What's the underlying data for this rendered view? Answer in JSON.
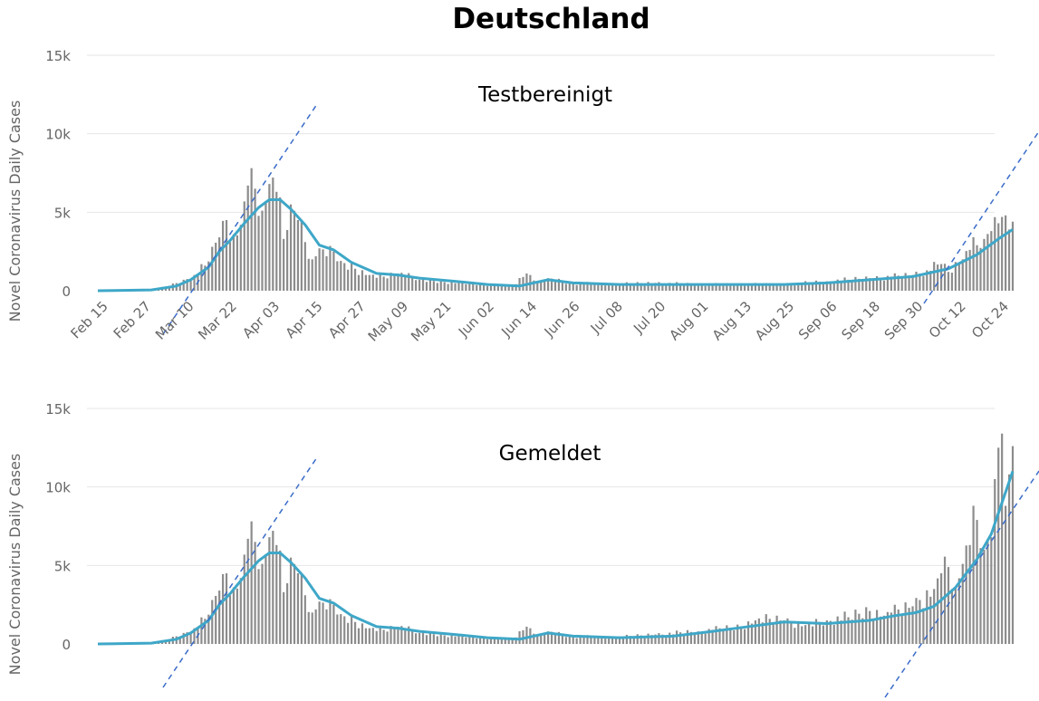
{
  "title": "Deutschland",
  "chart_data": [
    {
      "type": "bar",
      "subtitle": "Testbereinigt",
      "ylabel": "Novel Coronavirus Daily Cases",
      "ylim": [
        0,
        15000
      ],
      "yticks": [
        {
          "value": 0,
          "label": "0"
        },
        {
          "value": 5000,
          "label": "5k"
        },
        {
          "value": 10000,
          "label": "10k"
        },
        {
          "value": 15000,
          "label": "15k"
        }
      ],
      "x_start": "Feb 15",
      "xtick_labels": [
        "Feb 15",
        "Feb 27",
        "Mar 10",
        "Mar 22",
        "Apr 03",
        "Apr 15",
        "Apr 27",
        "May 09",
        "May 21",
        "Jun 02",
        "Jun 14",
        "Jun 26",
        "Jul 08",
        "Jul 20",
        "Aug 01",
        "Aug 13",
        "Aug 25",
        "Sep 06",
        "Sep 18",
        "Sep 30",
        "Oct 12",
        "Oct 24"
      ],
      "series": [
        {
          "kind": "bar",
          "points": [
            [
              "Feb 15",
              0
            ],
            [
              "Feb 27",
              0
            ],
            [
              "Mar 02",
              100
            ],
            [
              "Mar 06",
              300
            ],
            [
              "Mar 10",
              700
            ],
            [
              "Mar 13",
              1000
            ],
            [
              "Mar 16",
              1600
            ],
            [
              "Mar 18",
              2800
            ],
            [
              "Mar 20",
              3400
            ],
            [
              "Mar 22",
              4500
            ],
            [
              "Mar 24",
              3600
            ],
            [
              "Mar 26",
              4200
            ],
            [
              "Mar 28",
              6700
            ],
            [
              "Mar 30",
              6500
            ],
            [
              "Apr 01",
              5100
            ],
            [
              "Apr 03",
              6800
            ],
            [
              "Apr 05",
              6300
            ],
            [
              "Apr 07",
              3300
            ],
            [
              "Apr 09",
              5500
            ],
            [
              "Apr 11",
              4500
            ],
            [
              "Apr 13",
              3100
            ],
            [
              "Apr 15",
              2000
            ],
            [
              "Apr 17",
              2700
            ],
            [
              "Apr 19",
              2200
            ],
            [
              "Apr 21",
              2500
            ],
            [
              "Apr 23",
              1900
            ],
            [
              "Apr 27",
              1400
            ],
            [
              "May 01",
              1000
            ],
            [
              "May 05",
              900
            ],
            [
              "May 09",
              1100
            ],
            [
              "May 15",
              700
            ],
            [
              "May 21",
              600
            ],
            [
              "May 27",
              500
            ],
            [
              "Jun 02",
              400
            ],
            [
              "Jun 10",
              300
            ],
            [
              "Jun 14",
              1100
            ],
            [
              "Jun 17",
              500
            ],
            [
              "Jun 20",
              800
            ],
            [
              "Jun 26",
              500
            ],
            [
              "Jul 08",
              400
            ],
            [
              "Jul 20",
              500
            ],
            [
              "Aug 01",
              400
            ],
            [
              "Aug 13",
              400
            ],
            [
              "Aug 25",
              400
            ],
            [
              "Sep 06",
              600
            ],
            [
              "Sep 12",
              700
            ],
            [
              "Sep 18",
              800
            ],
            [
              "Sep 24",
              900
            ],
            [
              "Sep 30",
              1000
            ],
            [
              "Oct 04",
              1300
            ],
            [
              "Oct 08",
              1700
            ],
            [
              "Oct 10",
              1200
            ],
            [
              "Oct 14",
              2000
            ],
            [
              "Oct 16",
              2600
            ],
            [
              "Oct 18",
              2900
            ],
            [
              "Oct 20",
              3300
            ],
            [
              "Oct 22",
              3800
            ],
            [
              "Oct 24",
              4300
            ],
            [
              "Oct 25",
              4700
            ],
            [
              "Oct 27",
              3900
            ],
            [
              "Oct 28",
              4400
            ]
          ]
        },
        {
          "kind": "line",
          "points": [
            [
              "Feb 15",
              0
            ],
            [
              "Mar 01",
              50
            ],
            [
              "Mar 08",
              300
            ],
            [
              "Mar 12",
              700
            ],
            [
              "Mar 17",
              1500
            ],
            [
              "Mar 20",
              2500
            ],
            [
              "Mar 23",
              3200
            ],
            [
              "Mar 27",
              4300
            ],
            [
              "Mar 31",
              5300
            ],
            [
              "Apr 03",
              5800
            ],
            [
              "Apr 06",
              5800
            ],
            [
              "Apr 09",
              5200
            ],
            [
              "Apr 13",
              4200
            ],
            [
              "Apr 17",
              2900
            ],
            [
              "Apr 21",
              2600
            ],
            [
              "Apr 26",
              1800
            ],
            [
              "May 03",
              1100
            ],
            [
              "May 09",
              1000
            ],
            [
              "May 15",
              800
            ],
            [
              "May 25",
              600
            ],
            [
              "Jun 03",
              400
            ],
            [
              "Jun 12",
              300
            ],
            [
              "Jun 20",
              700
            ],
            [
              "Jun 27",
              500
            ],
            [
              "Jul 10",
              400
            ],
            [
              "Jul 25",
              400
            ],
            [
              "Aug 10",
              400
            ],
            [
              "Aug 25",
              400
            ],
            [
              "Sep 06",
              500
            ],
            [
              "Sep 18",
              700
            ],
            [
              "Sep 30",
              900
            ],
            [
              "Oct 10",
              1400
            ],
            [
              "Oct 18",
              2300
            ],
            [
              "Oct 24",
              3300
            ],
            [
              "Oct 28",
              3900
            ]
          ]
        }
      ]
    },
    {
      "type": "bar",
      "subtitle": "Gemeldet",
      "ylabel": "Novel Coronavirus Daily Cases",
      "ylim": [
        0,
        15000
      ],
      "yticks": [
        {
          "value": 0,
          "label": "0"
        },
        {
          "value": 5000,
          "label": "5k"
        },
        {
          "value": 10000,
          "label": "10k"
        },
        {
          "value": 15000,
          "label": "15k"
        }
      ],
      "x_start": "Feb 15",
      "series": [
        {
          "kind": "bar",
          "points": [
            [
              "Feb 15",
              0
            ],
            [
              "Feb 27",
              0
            ],
            [
              "Mar 02",
              100
            ],
            [
              "Mar 06",
              300
            ],
            [
              "Mar 10",
              700
            ],
            [
              "Mar 13",
              1000
            ],
            [
              "Mar 16",
              1600
            ],
            [
              "Mar 18",
              2800
            ],
            [
              "Mar 20",
              3400
            ],
            [
              "Mar 22",
              4500
            ],
            [
              "Mar 24",
              3600
            ],
            [
              "Mar 26",
              4200
            ],
            [
              "Mar 28",
              6700
            ],
            [
              "Mar 30",
              6500
            ],
            [
              "Apr 01",
              5100
            ],
            [
              "Apr 03",
              6800
            ],
            [
              "Apr 05",
              6300
            ],
            [
              "Apr 07",
              3300
            ],
            [
              "Apr 09",
              5500
            ],
            [
              "Apr 11",
              4500
            ],
            [
              "Apr 13",
              3100
            ],
            [
              "Apr 15",
              2000
            ],
            [
              "Apr 17",
              2700
            ],
            [
              "Apr 19",
              2200
            ],
            [
              "Apr 21",
              2500
            ],
            [
              "Apr 23",
              1900
            ],
            [
              "Apr 27",
              1400
            ],
            [
              "May 01",
              1000
            ],
            [
              "May 05",
              900
            ],
            [
              "May 09",
              1100
            ],
            [
              "May 15",
              700
            ],
            [
              "May 21",
              600
            ],
            [
              "May 27",
              500
            ],
            [
              "Jun 02",
              400
            ],
            [
              "Jun 10",
              300
            ],
            [
              "Jun 14",
              1100
            ],
            [
              "Jun 17",
              500
            ],
            [
              "Jun 20",
              800
            ],
            [
              "Jun 26",
              500
            ],
            [
              "Jul 08",
              400
            ],
            [
              "Jul 20",
              600
            ],
            [
              "Aug 01",
              800
            ],
            [
              "Aug 05",
              900
            ],
            [
              "Aug 13",
              1100
            ],
            [
              "Aug 17",
              1500
            ],
            [
              "Aug 21",
              1600
            ],
            [
              "Aug 25",
              1500
            ],
            [
              "Aug 31",
              1200
            ],
            [
              "Sep 06",
              1500
            ],
            [
              "Sep 12",
              1700
            ],
            [
              "Sep 18",
              2100
            ],
            [
              "Sep 22",
              1800
            ],
            [
              "Sep 24",
              2000
            ],
            [
              "Sep 30",
              2400
            ],
            [
              "Oct 02",
              2800
            ],
            [
              "Oct 06",
              3500
            ],
            [
              "Oct 08",
              4500
            ],
            [
              "Oct 10",
              4900
            ],
            [
              "Oct 12",
              3600
            ],
            [
              "Oct 14",
              5100
            ],
            [
              "Oct 16",
              6300
            ],
            [
              "Oct 18",
              7900
            ],
            [
              "Oct 20",
              6000
            ],
            [
              "Oct 22",
              6800
            ],
            [
              "Oct 23",
              10500
            ],
            [
              "Oct 24",
              12500
            ],
            [
              "Oct 25",
              13400
            ],
            [
              "Oct 26",
              8800
            ],
            [
              "Oct 27",
              10800
            ],
            [
              "Oct 28",
              12600
            ]
          ]
        },
        {
          "kind": "line",
          "points": [
            [
              "Feb 15",
              0
            ],
            [
              "Mar 01",
              50
            ],
            [
              "Mar 08",
              300
            ],
            [
              "Mar 12",
              700
            ],
            [
              "Mar 17",
              1500
            ],
            [
              "Mar 20",
              2500
            ],
            [
              "Mar 23",
              3200
            ],
            [
              "Mar 27",
              4300
            ],
            [
              "Mar 31",
              5300
            ],
            [
              "Apr 03",
              5800
            ],
            [
              "Apr 06",
              5800
            ],
            [
              "Apr 09",
              5200
            ],
            [
              "Apr 13",
              4200
            ],
            [
              "Apr 17",
              2900
            ],
            [
              "Apr 21",
              2600
            ],
            [
              "Apr 26",
              1800
            ],
            [
              "May 03",
              1100
            ],
            [
              "May 09",
              1000
            ],
            [
              "May 15",
              800
            ],
            [
              "May 25",
              600
            ],
            [
              "Jun 03",
              400
            ],
            [
              "Jun 12",
              300
            ],
            [
              "Jun 20",
              700
            ],
            [
              "Jun 27",
              500
            ],
            [
              "Jul 10",
              400
            ],
            [
              "Jul 25",
              500
            ],
            [
              "Aug 05",
              800
            ],
            [
              "Aug 15",
              1100
            ],
            [
              "Aug 25",
              1400
            ],
            [
              "Sep 06",
              1300
            ],
            [
              "Sep 18",
              1500
            ],
            [
              "Sep 25",
              1800
            ],
            [
              "Oct 01",
              2000
            ],
            [
              "Oct 06",
              2400
            ],
            [
              "Oct 12",
              3600
            ],
            [
              "Oct 18",
              5400
            ],
            [
              "Oct 22",
              7000
            ],
            [
              "Oct 25",
              9000
            ],
            [
              "Oct 28",
              11000
            ]
          ]
        }
      ]
    }
  ]
}
